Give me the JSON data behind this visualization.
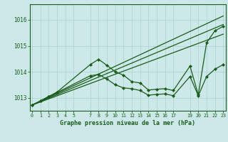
{
  "title": "Graphe pression niveau de la mer (hPa)",
  "background_color": "#cce8e8",
  "grid_color": "#b0d4d4",
  "line_color": "#1a5c1a",
  "ylim": [
    1012.5,
    1016.6
  ],
  "yticks": [
    1013,
    1014,
    1015,
    1016
  ],
  "xlim": [
    -0.3,
    23.3
  ],
  "x_ticks": [
    0,
    1,
    2,
    3,
    4,
    5,
    7,
    8,
    9,
    10,
    11,
    12,
    13,
    14,
    15,
    16,
    17,
    19,
    20,
    21,
    22,
    23
  ],
  "series_main": {
    "x": [
      0,
      1,
      2,
      3,
      7,
      8,
      9,
      10,
      11,
      12,
      13,
      14,
      15,
      16,
      17,
      19,
      20,
      21,
      22,
      23
    ],
    "y": [
      1012.72,
      1012.88,
      1013.05,
      1013.22,
      1014.28,
      1014.48,
      1014.25,
      1014.0,
      1013.87,
      1013.62,
      1013.57,
      1013.3,
      1013.33,
      1013.35,
      1013.28,
      1014.22,
      1013.12,
      1015.12,
      1015.58,
      1015.75
    ]
  },
  "series_lower": {
    "x": [
      0,
      1,
      2,
      3,
      7,
      8,
      9,
      10,
      11,
      12,
      13,
      14,
      15,
      16,
      17,
      19,
      20,
      21,
      22,
      23
    ],
    "y": [
      1012.72,
      1012.88,
      1013.05,
      1013.2,
      1013.85,
      1013.9,
      1013.72,
      1013.5,
      1013.38,
      1013.35,
      1013.28,
      1013.1,
      1013.13,
      1013.15,
      1013.08,
      1013.82,
      1013.08,
      1013.82,
      1014.1,
      1014.28
    ]
  },
  "trend1": {
    "x": [
      0,
      23
    ],
    "y": [
      1012.72,
      1016.15
    ]
  },
  "trend2": {
    "x": [
      0,
      23
    ],
    "y": [
      1012.72,
      1015.82
    ]
  },
  "trend3": {
    "x": [
      0,
      23
    ],
    "y": [
      1012.72,
      1015.45
    ]
  }
}
